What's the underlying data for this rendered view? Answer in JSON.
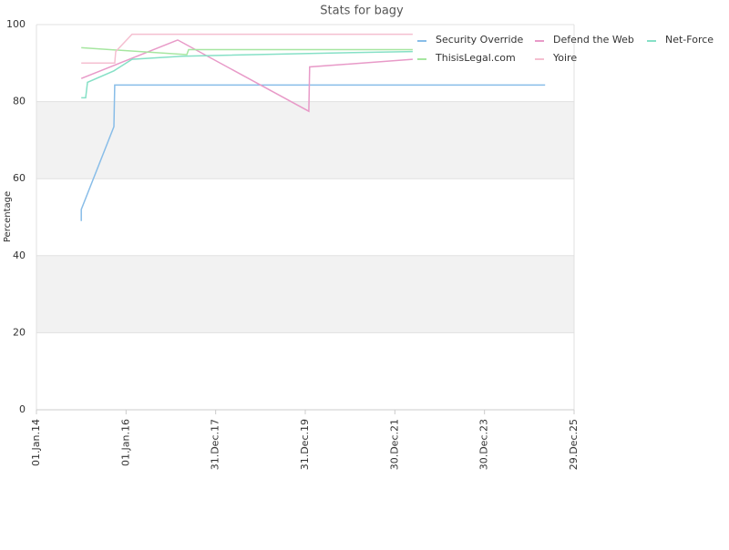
{
  "chart_data": {
    "type": "line",
    "title": "Stats for bagy",
    "ylabel": "Percentage",
    "ylim": [
      0,
      100
    ],
    "yticks": [
      0,
      20,
      40,
      60,
      80,
      100
    ],
    "xlim": [
      "2014-01-01",
      "2025-12-29"
    ],
    "xticks": [
      {
        "value": "2014-01-01",
        "label": "01.Jan.14"
      },
      {
        "value": "2016-01-01",
        "label": "01.Jan.16"
      },
      {
        "value": "2017-12-31",
        "label": "31.Dec.17"
      },
      {
        "value": "2019-12-31",
        "label": "31.Dec.19"
      },
      {
        "value": "2021-12-30",
        "label": "30.Dec.21"
      },
      {
        "value": "2023-12-30",
        "label": "30.Dec.23"
      },
      {
        "value": "2025-12-29",
        "label": "29.Dec.25"
      }
    ],
    "grid": true,
    "legend": "top-right",
    "series": [
      {
        "name": "Security Override",
        "color": "#88bde8",
        "x": [
          "2015-01-01",
          "2015-01-01",
          "2015-09-24",
          "2015-10-01",
          "2025-05-07"
        ],
        "values": [
          49,
          52,
          73.5,
          84.3,
          84.3
        ]
      },
      {
        "name": "Defend the Web",
        "color": "#e89ac8",
        "x": [
          "2015-01-01",
          "2017-02-25",
          "2020-01-29",
          "2020-02-05",
          "2022-05-24"
        ],
        "values": [
          86,
          96,
          77.5,
          89,
          91
        ]
      },
      {
        "name": "Net-Force",
        "color": "#86e0c6",
        "x": [
          "2015-01-01",
          "2015-02-06",
          "2015-02-21",
          "2015-09-24",
          "2016-02-19",
          "2017-04-03",
          "2020-01-29",
          "2022-05-24"
        ],
        "values": [
          81,
          81,
          85,
          88,
          91,
          91.8,
          92.5,
          93
        ]
      },
      {
        "name": "ThisisLegal.com",
        "color": "#a6e6a0",
        "x": [
          "2015-01-01",
          "2017-05-10",
          "2017-05-25",
          "2022-05-24"
        ],
        "values": [
          94,
          92.2,
          93.5,
          93.5
        ]
      },
      {
        "name": "Yoire",
        "color": "#f5bfd0",
        "x": [
          "2015-01-01",
          "2015-10-01",
          "2015-10-09",
          "2016-02-19",
          "2022-05-24"
        ],
        "values": [
          90,
          90,
          93,
          97.5,
          97.5
        ]
      }
    ]
  }
}
